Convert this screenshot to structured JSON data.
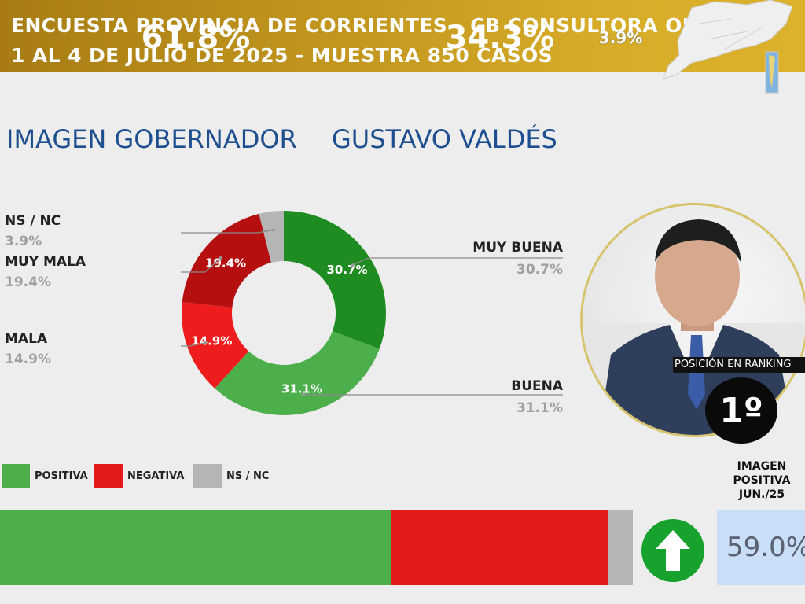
{
  "header": {
    "line1": "ENCUESTA PROVINCIA DE CORRIENTES - CB CONSULTORA OP",
    "line2": "1 AL 4 DE JULIO DE 2025 - MUESTRA 850 CASOS"
  },
  "title": {
    "part1": "IMAGEN GOBERNADOR",
    "part2": "GUSTAVO VALDÉS"
  },
  "colors": {
    "muy_buena": "#1f8c22",
    "buena": "#4caf4c",
    "mala": "#ee1c1c",
    "muy_mala": "#b50f0f",
    "ns_nc": "#b5b5b5",
    "positiva": "#4caf4c",
    "negativa": "#e31b1b"
  },
  "chart_data": [
    {
      "type": "pie",
      "categories": [
        "MUY BUENA",
        "BUENA",
        "MALA",
        "MUY MALA",
        "NS / NC"
      ],
      "values": [
        30.7,
        31.1,
        14.9,
        19.4,
        3.9
      ],
      "value_labels": [
        "30.7%",
        "31.1%",
        "14.9%",
        "19.4%",
        "3.9%"
      ],
      "slice_labels": [
        "30.7%",
        "31.1%",
        "14.9%",
        "19.4%",
        ""
      ],
      "title": "IMAGEN GOBERNADOR GUSTAVO VALDÉS",
      "donut": true
    },
    {
      "type": "bar",
      "orientation": "horizontal-stacked",
      "categories": [
        "POSITIVA",
        "NEGATIVA",
        "NS / NC"
      ],
      "values": [
        61.8,
        34.3,
        3.9
      ],
      "value_labels": [
        "61.8%",
        "34.3%",
        "3.9%"
      ],
      "legend": [
        "POSITIVA",
        "NEGATIVA",
        "NS / NC"
      ]
    }
  ],
  "ranking": {
    "label": "POSICIÓN EN RANKING",
    "position": "1º"
  },
  "previous": {
    "label_line1": "IMAGEN",
    "label_line2": "POSITIVA",
    "label_line3": "JUN./25",
    "value": "59.0%",
    "trend": "up-arrow-icon"
  }
}
